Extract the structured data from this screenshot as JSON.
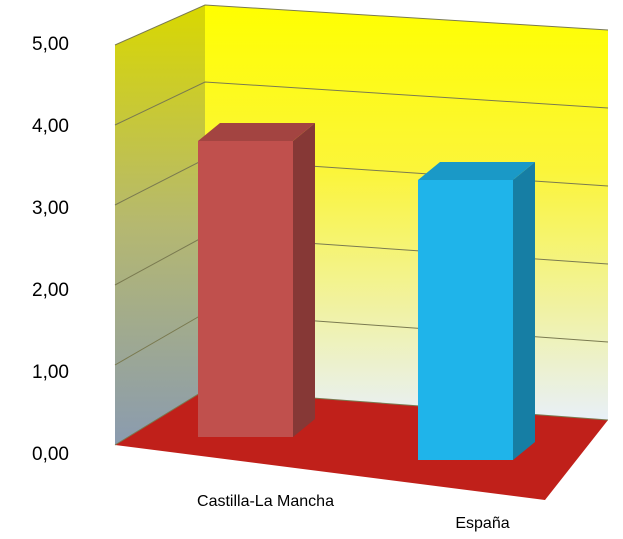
{
  "chart_data": {
    "type": "bar3d",
    "categories": [
      "Castilla-La Mancha",
      "España"
    ],
    "series": [
      {
        "values": [
          3.7,
          3.5
        ],
        "colors": [
          "#c0504d",
          "#1fb4ea"
        ]
      }
    ],
    "ylim": [
      0,
      5
    ],
    "yticks": [
      {
        "value": 0,
        "label": "0,00"
      },
      {
        "value": 1,
        "label": "1,00"
      },
      {
        "value": 2,
        "label": "2,00"
      },
      {
        "value": 3,
        "label": "3,00"
      },
      {
        "value": 4,
        "label": "4,00"
      },
      {
        "value": 5,
        "label": "5,00"
      }
    ],
    "grid": true
  }
}
